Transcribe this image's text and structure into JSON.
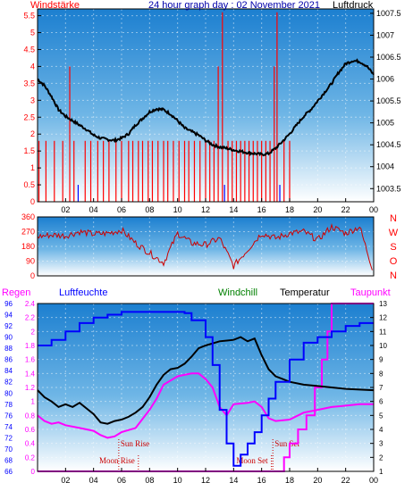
{
  "colors": {
    "wind": "#ff0000",
    "pressure": "#000000",
    "direction": "#cc0000",
    "humidity": "#0000ff",
    "temperature": "#000000",
    "dewpoint": "#ff00ff",
    "rain": "#ff00ff",
    "windchill": "#008000",
    "title": "#0000aa",
    "sky_top": "#1c86d6",
    "sky_bottom": "#ffffff"
  },
  "chart_data": [
    {
      "type": "line",
      "panel": "wind_pressure",
      "title": "24 hour graph day : 02 November 2021",
      "left_label": "Windstärke",
      "right_label": "Luftdruck",
      "x_ticks": [
        "02",
        "04",
        "06",
        "08",
        "10",
        "12",
        "14",
        "16",
        "18",
        "20",
        "22",
        "00"
      ],
      "x_range_hours": [
        0,
        24
      ],
      "left_ticks": [
        "0",
        "0.5",
        "1",
        "1.5",
        "2",
        "2.5",
        "3",
        "3.5",
        "4",
        "4.5",
        "5",
        "5.5"
      ],
      "left_range": [
        0,
        5.7
      ],
      "right_ticks": [
        "1003.5",
        "1004",
        "1004.5",
        "1005",
        "1005.5",
        "1006",
        "1006.5",
        "1007",
        "1007.5"
      ],
      "right_range": [
        1003.2,
        1007.6
      ],
      "series": [
        {
          "name": "Luftdruck",
          "axis": "right",
          "points": [
            [
              0,
              1006.0
            ],
            [
              0.5,
              1005.85
            ],
            [
              1,
              1005.6
            ],
            [
              1.5,
              1005.3
            ],
            [
              2,
              1005.15
            ],
            [
              2.5,
              1005.05
            ],
            [
              3,
              1004.95
            ],
            [
              3.5,
              1004.85
            ],
            [
              4,
              1004.72
            ],
            [
              4.5,
              1004.65
            ],
            [
              5,
              1004.62
            ],
            [
              5.5,
              1004.6
            ],
            [
              6,
              1004.65
            ],
            [
              6.5,
              1004.75
            ],
            [
              7,
              1004.95
            ],
            [
              7.5,
              1005.1
            ],
            [
              8,
              1005.25
            ],
            [
              8.5,
              1005.32
            ],
            [
              9,
              1005.3
            ],
            [
              9.5,
              1005.2
            ],
            [
              10,
              1005.05
            ],
            [
              10.5,
              1004.88
            ],
            [
              11,
              1004.8
            ],
            [
              11.5,
              1004.72
            ],
            [
              12,
              1004.6
            ],
            [
              12.5,
              1004.5
            ],
            [
              13,
              1004.45
            ],
            [
              13.5,
              1004.42
            ],
            [
              14,
              1004.38
            ],
            [
              14.5,
              1004.35
            ],
            [
              15,
              1004.32
            ],
            [
              15.5,
              1004.3
            ],
            [
              16,
              1004.28
            ],
            [
              16.5,
              1004.3
            ],
            [
              17,
              1004.42
            ],
            [
              17.5,
              1004.58
            ],
            [
              18,
              1004.75
            ],
            [
              18.5,
              1004.95
            ],
            [
              19,
              1005.15
            ],
            [
              19.5,
              1005.3
            ],
            [
              20,
              1005.5
            ],
            [
              20.5,
              1005.7
            ],
            [
              21,
              1005.9
            ],
            [
              21.5,
              1006.15
            ],
            [
              22,
              1006.35
            ],
            [
              22.5,
              1006.42
            ],
            [
              23,
              1006.4
            ],
            [
              23.5,
              1006.3
            ],
            [
              24,
              1006.1
            ]
          ]
        },
        {
          "name": "Windstärke",
          "axis": "left",
          "bars": [
            [
              0.1,
              1.8
            ],
            [
              0.6,
              1.8
            ],
            [
              1.2,
              1.8
            ],
            [
              1.8,
              1.8
            ],
            [
              2.3,
              4.0
            ],
            [
              2.6,
              1.8
            ],
            [
              2.9,
              0.5
            ],
            [
              3.4,
              1.8
            ],
            [
              3.8,
              1.8
            ],
            [
              4.3,
              1.8
            ],
            [
              4.7,
              1.8
            ],
            [
              5.1,
              1.8
            ],
            [
              5.6,
              1.8
            ],
            [
              6.0,
              1.8
            ],
            [
              6.5,
              1.8
            ],
            [
              6.8,
              1.8
            ],
            [
              7.2,
              1.8
            ],
            [
              7.5,
              1.8
            ],
            [
              7.9,
              1.8
            ],
            [
              8.2,
              1.8
            ],
            [
              8.6,
              1.8
            ],
            [
              9.0,
              1.8
            ],
            [
              9.3,
              1.8
            ],
            [
              9.7,
              1.8
            ],
            [
              10.1,
              1.8
            ],
            [
              10.5,
              1.8
            ],
            [
              10.8,
              1.8
            ],
            [
              11.2,
              1.8
            ],
            [
              11.6,
              1.8
            ],
            [
              12.0,
              1.8
            ],
            [
              12.3,
              1.8
            ],
            [
              12.6,
              1.8
            ],
            [
              12.9,
              4.0
            ],
            [
              13.2,
              5.6
            ],
            [
              13.35,
              0.5
            ],
            [
              13.6,
              1.8
            ],
            [
              13.9,
              1.8
            ],
            [
              14.2,
              1.8
            ],
            [
              14.5,
              1.8
            ],
            [
              14.8,
              1.8
            ],
            [
              15.1,
              1.8
            ],
            [
              15.4,
              1.8
            ],
            [
              15.7,
              1.8
            ],
            [
              16.0,
              1.8
            ],
            [
              16.3,
              1.8
            ],
            [
              16.6,
              1.8
            ],
            [
              16.9,
              4.0
            ],
            [
              17.1,
              5.6
            ],
            [
              17.3,
              0.5
            ],
            [
              17.6,
              1.8
            ],
            [
              18.0,
              1.8
            ]
          ]
        }
      ]
    },
    {
      "type": "scatter",
      "panel": "wind_direction",
      "left_ticks": [
        "0",
        "90",
        "180",
        "270",
        "360"
      ],
      "left_range": [
        0,
        360
      ],
      "direction_labels": [
        "N",
        "W",
        "S",
        "O",
        "N"
      ],
      "points": [
        [
          0,
          240
        ],
        [
          1,
          250
        ],
        [
          2,
          245
        ],
        [
          3,
          270
        ],
        [
          4,
          255
        ],
        [
          5,
          260
        ],
        [
          6,
          280
        ],
        [
          7,
          200
        ],
        [
          8,
          140
        ],
        [
          9,
          80
        ],
        [
          10,
          260
        ],
        [
          11,
          200
        ],
        [
          12,
          190
        ],
        [
          13,
          230
        ],
        [
          14,
          60
        ],
        [
          15,
          160
        ],
        [
          16,
          260
        ],
        [
          17,
          230
        ],
        [
          18,
          260
        ],
        [
          19,
          270
        ],
        [
          20,
          220
        ],
        [
          21,
          300
        ],
        [
          22,
          260
        ],
        [
          23,
          300
        ],
        [
          24,
          20
        ]
      ]
    },
    {
      "type": "line",
      "panel": "climate",
      "labels": {
        "rain": "Regen",
        "humidity": "Luftfeuchte",
        "windchill": "Windchill",
        "temperature": "Temperatur",
        "dewpoint": "Taupunkt"
      },
      "humidity_ticks": [
        "66",
        "68",
        "70",
        "72",
        "74",
        "76",
        "78",
        "80",
        "82",
        "84",
        "86",
        "88",
        "90",
        "92",
        "94",
        "96"
      ],
      "humidity_range": [
        66,
        96
      ],
      "rain_ticks": [
        "0",
        "0.2",
        "0.4",
        "0.6",
        "0.8",
        "1",
        "1.2",
        "1.4",
        "1.6",
        "1.8",
        "2",
        "2.2",
        "2.4"
      ],
      "rain_range": [
        0,
        2.4
      ],
      "temp_ticks": [
        "1",
        "2",
        "3",
        "4",
        "5",
        "6",
        "7",
        "8",
        "9",
        "10",
        "11",
        "12",
        "13"
      ],
      "temp_range": [
        1,
        13
      ],
      "annotations": [
        {
          "text": "Moon Rise",
          "hour": 7.2,
          "kind": "below"
        },
        {
          "text": "Sun Rise",
          "hour": 5.8,
          "kind": "above"
        },
        {
          "text": "Sun Set",
          "hour": 16.8,
          "kind": "above"
        },
        {
          "text": "Moon Set",
          "hour": 16.7,
          "kind": "below"
        }
      ],
      "series": [
        {
          "name": "Luftfeuchte",
          "axis": "humidity",
          "points": [
            [
              0,
              88.5
            ],
            [
              1,
              89.5
            ],
            [
              2,
              91
            ],
            [
              3,
              92.5
            ],
            [
              4,
              93.5
            ],
            [
              5,
              94
            ],
            [
              6,
              94.5
            ],
            [
              7,
              94.5
            ],
            [
              8,
              94.5
            ],
            [
              9,
              94.5
            ],
            [
              10,
              94.5
            ],
            [
              10.5,
              94.3
            ],
            [
              11,
              93
            ],
            [
              12,
              90
            ],
            [
              12.5,
              85
            ],
            [
              13,
              77
            ],
            [
              13.5,
              71
            ],
            [
              14,
              67
            ],
            [
              14.5,
              69
            ],
            [
              15,
              71
            ],
            [
              15.5,
              73
            ],
            [
              16,
              76
            ],
            [
              16.5,
              79
            ],
            [
              17,
              82
            ],
            [
              18,
              86
            ],
            [
              19,
              89
            ],
            [
              20,
              90
            ],
            [
              21,
              91
            ],
            [
              22,
              92
            ],
            [
              23,
              92.5
            ],
            [
              24,
              92.5
            ]
          ]
        },
        {
          "name": "Temperatur",
          "axis": "temp",
          "points": [
            [
              0,
              6.8
            ],
            [
              0.5,
              6.3
            ],
            [
              1,
              6.0
            ],
            [
              1.5,
              5.6
            ],
            [
              2,
              5.8
            ],
            [
              2.5,
              5.6
            ],
            [
              3,
              5.9
            ],
            [
              3.5,
              5.5
            ],
            [
              4,
              5.1
            ],
            [
              4.5,
              4.5
            ],
            [
              5,
              4.4
            ],
            [
              5.5,
              4.6
            ],
            [
              6,
              4.7
            ],
            [
              6.5,
              4.9
            ],
            [
              7,
              5.2
            ],
            [
              7.5,
              5.6
            ],
            [
              8,
              6.3
            ],
            [
              8.5,
              7.2
            ],
            [
              9,
              7.9
            ],
            [
              9.5,
              8.3
            ],
            [
              10,
              8.4
            ],
            [
              10.5,
              8.7
            ],
            [
              11,
              9.2
            ],
            [
              11.5,
              9.8
            ],
            [
              12,
              10.0
            ],
            [
              13,
              10.3
            ],
            [
              14,
              10.4
            ],
            [
              14.5,
              10.6
            ],
            [
              15,
              10.3
            ],
            [
              15.5,
              10.5
            ],
            [
              16,
              9.3
            ],
            [
              16.5,
              8.3
            ],
            [
              17,
              7.8
            ],
            [
              17.5,
              7.6
            ],
            [
              18,
              7.4
            ],
            [
              19,
              7.2
            ],
            [
              20,
              7.1
            ],
            [
              21,
              7.0
            ],
            [
              22,
              6.9
            ],
            [
              23,
              6.85
            ],
            [
              24,
              6.8
            ]
          ]
        },
        {
          "name": "Taupunkt",
          "axis": "temp",
          "points": [
            [
              0,
              5.0
            ],
            [
              0.5,
              4.6
            ],
            [
              1,
              4.4
            ],
            [
              1.5,
              4.5
            ],
            [
              2,
              4.3
            ],
            [
              3,
              4.1
            ],
            [
              4,
              3.9
            ],
            [
              4.5,
              3.6
            ],
            [
              5,
              3.4
            ],
            [
              5.5,
              3.5
            ],
            [
              6,
              3.8
            ],
            [
              7,
              4.1
            ],
            [
              8,
              5.4
            ],
            [
              8.5,
              6.2
            ],
            [
              9,
              7.2
            ],
            [
              10,
              7.8
            ],
            [
              11,
              8.0
            ],
            [
              11.5,
              8.0
            ],
            [
              12,
              7.6
            ],
            [
              12.5,
              7.0
            ],
            [
              13,
              5.6
            ],
            [
              13.5,
              5.0
            ],
            [
              14,
              5.8
            ],
            [
              15,
              5.9
            ],
            [
              15.5,
              6.0
            ],
            [
              16,
              5.6
            ],
            [
              16.5,
              4.8
            ],
            [
              17,
              4.6
            ],
            [
              18,
              4.7
            ],
            [
              19,
              5.2
            ],
            [
              20,
              5.4
            ],
            [
              21,
              5.6
            ],
            [
              22,
              5.7
            ],
            [
              23,
              5.8
            ],
            [
              24,
              5.8
            ]
          ]
        },
        {
          "name": "Regen",
          "axis": "rain",
          "steps": [
            [
              0,
              0
            ],
            [
              17.3,
              0
            ],
            [
              17.6,
              0.2
            ],
            [
              18,
              0.4
            ],
            [
              18.6,
              0.6
            ],
            [
              19.2,
              0.8
            ],
            [
              19.8,
              1.2
            ],
            [
              20.3,
              1.6
            ],
            [
              20.7,
              2.0
            ],
            [
              21.0,
              2.4
            ],
            [
              24,
              2.4
            ]
          ]
        }
      ]
    }
  ]
}
